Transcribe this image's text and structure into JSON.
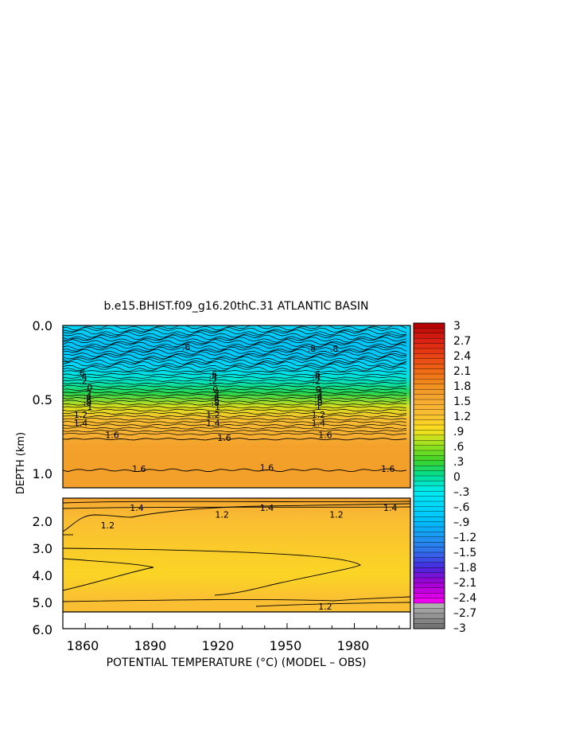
{
  "chart_data": {
    "type": "heatmap",
    "title": "b.e15.BHIST.f09_g16.20thC.31 ATLANTIC BASIN",
    "xlabel": "POTENTIAL TEMPERATURE (°C) (MODEL – OBS)",
    "ylabel": "DEPTH (km)",
    "x_ticks": [
      "1860",
      "1890",
      "1920",
      "1950",
      "1980"
    ],
    "y_ticks_upper": [
      "0.0",
      "0.5",
      "1.0"
    ],
    "y_ticks_lower": [
      "2.0",
      "3.0",
      "4.0",
      "5.0",
      "6.0"
    ],
    "upper_panel_depth_range_km": [
      0.0,
      1.2
    ],
    "lower_panel_depth_range_km": [
      1.2,
      6.0
    ],
    "colorbar_range": [
      -3,
      3
    ],
    "colorbar_labels": [
      "3",
      "2.7",
      "2.4",
      "2.1",
      "1.8",
      "1.5",
      "1.2",
      ".9",
      ".6",
      ".3",
      "0",
      "–.3",
      "–.6",
      "–.9",
      "–1.2",
      "–1.5",
      "–1.8",
      "–2.1",
      "–2.4",
      "–2.7",
      "–3"
    ],
    "depth_profile": [
      {
        "depth": 0.0,
        "value": -0.6
      },
      {
        "depth": 0.1,
        "value": -0.8
      },
      {
        "depth": 0.2,
        "value": -0.8
      },
      {
        "depth": 0.3,
        "value": -0.6
      },
      {
        "depth": 0.4,
        "value": -0.2
      },
      {
        "depth": 0.5,
        "value": 0.2
      },
      {
        "depth": 0.6,
        "value": 0.8
      },
      {
        "depth": 0.7,
        "value": 1.2
      },
      {
        "depth": 0.8,
        "value": 1.4
      },
      {
        "depth": 0.9,
        "value": 1.6
      },
      {
        "depth": 1.0,
        "value": 1.6
      },
      {
        "depth": 1.2,
        "value": 1.6
      },
      {
        "depth": 1.5,
        "value": 1.4
      },
      {
        "depth": 2.0,
        "value": 1.2
      },
      {
        "depth": 3.0,
        "value": 1.1
      },
      {
        "depth": 4.0,
        "value": 1.0
      },
      {
        "depth": 5.0,
        "value": 1.2
      },
      {
        "depth": 5.4,
        "value": 1.2
      }
    ],
    "contour_labels_upper": [
      {
        "text": ".6",
        "year": 1905,
        "depth": 0.16
      },
      {
        "text": ".8",
        "year": 1961,
        "depth": 0.17
      },
      {
        "text": ".8",
        "year": 1971,
        "depth": 0.17
      },
      {
        "text": ".6",
        "year": 1858,
        "depth": 0.35
      },
      {
        "text": ".4",
        "year": 1859,
        "depth": 0.38
      },
      {
        "text": ".2",
        "year": 1859,
        "depth": 0.41
      },
      {
        "text": ".6",
        "year": 1917,
        "depth": 0.36
      },
      {
        "text": ".4",
        "year": 1917,
        "depth": 0.38
      },
      {
        "text": ".2",
        "year": 1917,
        "depth": 0.41
      },
      {
        "text": ".6",
        "year": 1963,
        "depth": 0.36
      },
      {
        "text": ".4",
        "year": 1963,
        "depth": 0.38
      },
      {
        "text": ".2",
        "year": 1963,
        "depth": 0.41
      },
      {
        "text": "0",
        "year": 1862,
        "depth": 0.46
      },
      {
        "text": "0",
        "year": 1918,
        "depth": 0.47
      },
      {
        "text": "0",
        "year": 1964,
        "depth": 0.47
      },
      {
        "text": ".2",
        "year": 1861,
        "depth": 0.5
      },
      {
        "text": ".4",
        "year": 1861,
        "depth": 0.52
      },
      {
        "text": ".6",
        "year": 1861,
        "depth": 0.55
      },
      {
        "text": ".8",
        "year": 1861,
        "depth": 0.57
      },
      {
        "text": "1",
        "year": 1862,
        "depth": 0.6
      },
      {
        "text": ".2",
        "year": 1918,
        "depth": 0.5
      },
      {
        "text": ".4",
        "year": 1918,
        "depth": 0.52
      },
      {
        "text": ".6",
        "year": 1918,
        "depth": 0.55
      },
      {
        "text": ".8",
        "year": 1918,
        "depth": 0.57
      },
      {
        "text": "1",
        "year": 1919,
        "depth": 0.6
      },
      {
        "text": ".2",
        "year": 1964,
        "depth": 0.5
      },
      {
        "text": ".4",
        "year": 1964,
        "depth": 0.52
      },
      {
        "text": ".6",
        "year": 1964,
        "depth": 0.55
      },
      {
        "text": ".8",
        "year": 1964,
        "depth": 0.57
      },
      {
        "text": "1",
        "year": 1964,
        "depth": 0.6
      },
      {
        "text": "1.2",
        "year": 1858,
        "depth": 0.66
      },
      {
        "text": "1.4",
        "year": 1858,
        "depth": 0.72
      },
      {
        "text": "1.2",
        "year": 1917,
        "depth": 0.66
      },
      {
        "text": "1.4",
        "year": 1917,
        "depth": 0.72
      },
      {
        "text": "1.2",
        "year": 1964,
        "depth": 0.66
      },
      {
        "text": "1.4",
        "year": 1964,
        "depth": 0.72
      },
      {
        "text": "1.6",
        "year": 1872,
        "depth": 0.81
      },
      {
        "text": "1.6",
        "year": 1922,
        "depth": 0.83
      },
      {
        "text": "1.6",
        "year": 1967,
        "depth": 0.81
      },
      {
        "text": "1.6",
        "year": 1884,
        "depth": 1.06
      },
      {
        "text": "1.6",
        "year": 1941,
        "depth": 1.05
      },
      {
        "text": "1.6",
        "year": 1995,
        "depth": 1.06
      }
    ],
    "contour_labels_lower": [
      {
        "text": "1.4",
        "year": 1883,
        "depth": 1.35
      },
      {
        "text": "1.4",
        "year": 1941,
        "depth": 1.35
      },
      {
        "text": "1.4",
        "year": 1996,
        "depth": 1.35
      },
      {
        "text": "1.2",
        "year": 1921,
        "depth": 1.6
      },
      {
        "text": "1.2",
        "year": 1972,
        "depth": 1.6
      },
      {
        "text": "1.2",
        "year": 1870,
        "depth": 2.0
      },
      {
        "text": "1.2",
        "year": 1967,
        "depth": 5.0
      }
    ]
  }
}
